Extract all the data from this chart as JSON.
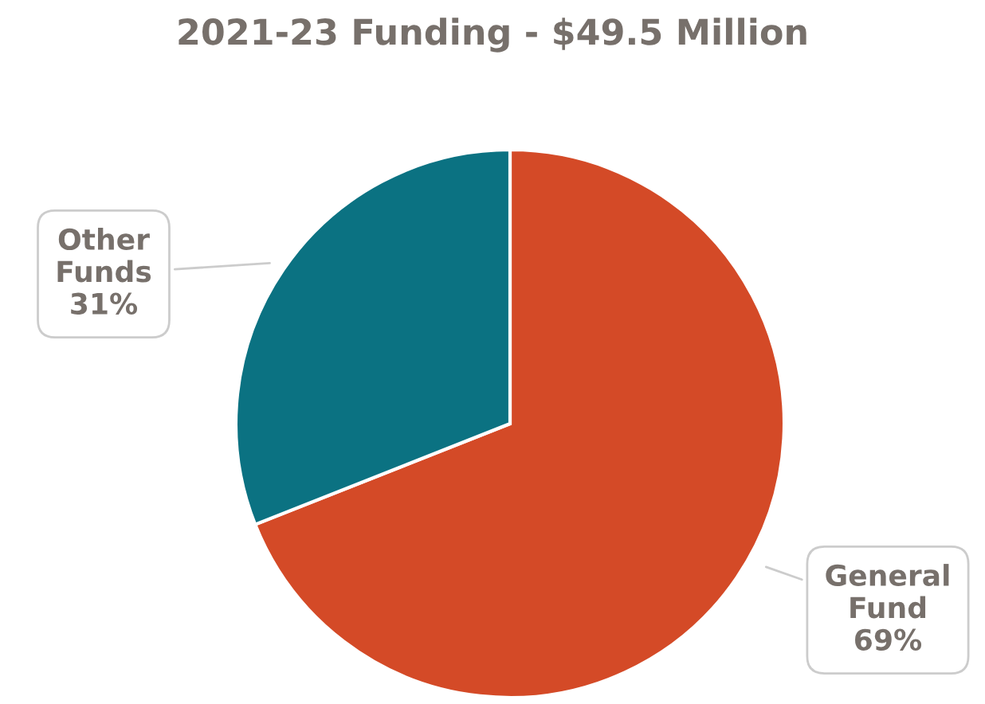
{
  "chart_data": {
    "type": "pie",
    "title": "2021-23 Funding - $49.5 Million",
    "categories": [
      "General Fund",
      "Other Funds"
    ],
    "values": [
      69,
      31
    ],
    "value_labels": [
      "69%",
      "31%"
    ],
    "colors": [
      "#d44a27",
      "#0b7282"
    ],
    "legend": false
  }
}
